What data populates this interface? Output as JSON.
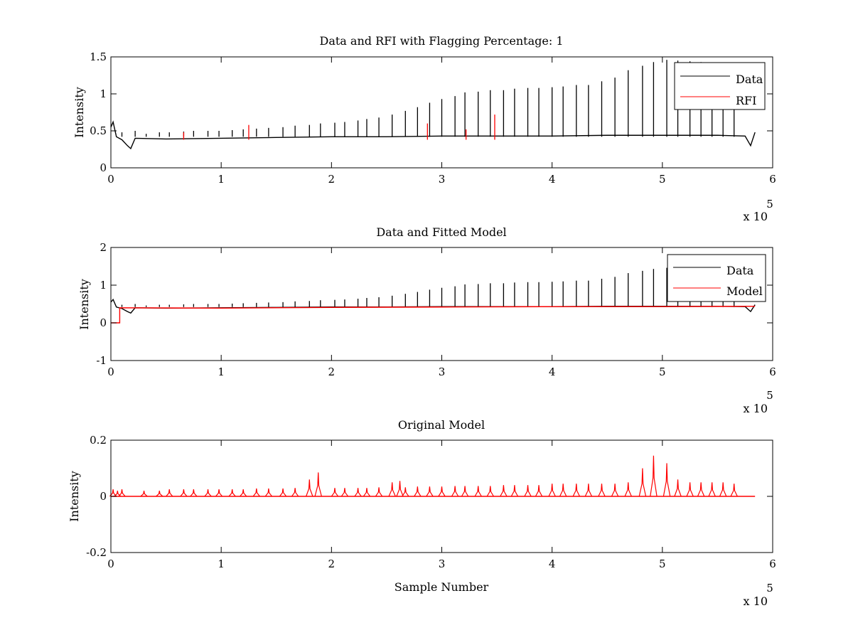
{
  "figure": {
    "background": "#ffffff"
  },
  "colors": {
    "data": "#000000",
    "red": "#ff0000",
    "axes": "#000000"
  },
  "chart_data": [
    {
      "id": "p1",
      "type": "line",
      "title": "Data and RFI with Flagging Percentage: 1",
      "xlabel": "",
      "ylabel": "Intensity",
      "xlim": [
        0,
        6
      ],
      "ylim": [
        0,
        1.5
      ],
      "xticks": [
        0,
        1,
        2,
        3,
        4,
        5,
        6
      ],
      "yticks": [
        0,
        0.5,
        1,
        1.5
      ],
      "xtick_labels": [
        "0",
        "1",
        "2",
        "3",
        "4",
        "5",
        "6"
      ],
      "ytick_labels": [
        "0",
        "0.5",
        "1",
        "1.5"
      ],
      "x_multiplier": {
        "base": "x 10",
        "exponent": "5"
      },
      "legend_position": "top-right",
      "legend": [
        {
          "label": "Data",
          "color": "#000000"
        },
        {
          "label": "RFI",
          "color": "#ff0000"
        }
      ],
      "baseline": {
        "x": [
          0,
          0.02,
          0.05,
          0.1,
          0.15,
          0.18,
          0.22,
          0.5,
          1.0,
          1.5,
          2.0,
          2.5,
          3.0,
          3.5,
          4.0,
          4.5,
          5.0,
          5.5,
          5.75,
          5.8,
          5.84
        ],
        "y": [
          0.55,
          0.62,
          0.42,
          0.38,
          0.3,
          0.26,
          0.4,
          0.39,
          0.4,
          0.41,
          0.42,
          0.42,
          0.43,
          0.43,
          0.43,
          0.44,
          0.44,
          0.44,
          0.43,
          0.3,
          0.48
        ]
      },
      "spikes": {
        "x": [
          0.1,
          0.22,
          0.32,
          0.44,
          0.53,
          0.66,
          0.75,
          0.88,
          0.98,
          1.1,
          1.2,
          1.32,
          1.43,
          1.56,
          1.67,
          1.8,
          1.9,
          2.03,
          2.12,
          2.24,
          2.32,
          2.43,
          2.55,
          2.67,
          2.78,
          2.89,
          3.0,
          3.12,
          3.21,
          3.33,
          3.44,
          3.56,
          3.66,
          3.78,
          3.88,
          4.0,
          4.1,
          4.22,
          4.33,
          4.45,
          4.57,
          4.69,
          4.82,
          4.92,
          5.04,
          5.14,
          5.25,
          5.35,
          5.45,
          5.55,
          5.65
        ],
        "y": [
          0.48,
          0.5,
          0.46,
          0.48,
          0.48,
          0.49,
          0.5,
          0.5,
          0.5,
          0.51,
          0.52,
          0.53,
          0.54,
          0.55,
          0.57,
          0.58,
          0.6,
          0.61,
          0.62,
          0.64,
          0.66,
          0.68,
          0.72,
          0.77,
          0.82,
          0.88,
          0.93,
          0.97,
          1.02,
          1.03,
          1.05,
          1.05,
          1.07,
          1.08,
          1.08,
          1.09,
          1.1,
          1.12,
          1.12,
          1.17,
          1.22,
          1.32,
          1.38,
          1.43,
          1.46,
          1.45,
          1.44,
          1.43,
          1.42,
          1.42,
          1.42
        ]
      },
      "rfi": {
        "x": [
          0.66,
          1.25,
          2.87,
          3.22,
          3.48
        ],
        "y": [
          0.48,
          0.58,
          0.6,
          0.52,
          0.72
        ]
      }
    },
    {
      "id": "p2",
      "type": "line",
      "title": "Data and Fitted Model",
      "xlabel": "",
      "ylabel": "Intensity",
      "xlim": [
        0,
        6
      ],
      "ylim": [
        -1,
        2
      ],
      "xticks": [
        0,
        1,
        2,
        3,
        4,
        5,
        6
      ],
      "yticks": [
        -1,
        0,
        1,
        2
      ],
      "xtick_labels": [
        "0",
        "1",
        "2",
        "3",
        "4",
        "5",
        "6"
      ],
      "ytick_labels": [
        "-1",
        "0",
        "1",
        "2"
      ],
      "x_multiplier": {
        "base": "x 10",
        "exponent": "5"
      },
      "legend_position": "top-right",
      "legend": [
        {
          "label": "Data",
          "color": "#000000"
        },
        {
          "label": "Model",
          "color": "#ff0000"
        }
      ],
      "baseline": {
        "x": [
          0,
          0.02,
          0.05,
          0.1,
          0.15,
          0.18,
          0.22,
          0.5,
          1.0,
          1.5,
          2.0,
          2.5,
          3.0,
          3.5,
          4.0,
          4.5,
          5.0,
          5.5,
          5.75,
          5.8,
          5.84
        ],
        "y": [
          0.55,
          0.62,
          0.42,
          0.38,
          0.3,
          0.26,
          0.4,
          0.39,
          0.4,
          0.41,
          0.42,
          0.42,
          0.43,
          0.43,
          0.43,
          0.44,
          0.44,
          0.44,
          0.43,
          0.3,
          0.48
        ]
      },
      "spikes": {
        "x": [
          0.1,
          0.22,
          0.32,
          0.44,
          0.53,
          0.66,
          0.75,
          0.88,
          0.98,
          1.1,
          1.2,
          1.32,
          1.43,
          1.56,
          1.67,
          1.8,
          1.9,
          2.03,
          2.12,
          2.24,
          2.32,
          2.43,
          2.55,
          2.67,
          2.78,
          2.89,
          3.0,
          3.12,
          3.21,
          3.33,
          3.44,
          3.56,
          3.66,
          3.78,
          3.88,
          4.0,
          4.1,
          4.22,
          4.33,
          4.45,
          4.57,
          4.69,
          4.82,
          4.92,
          5.04,
          5.14,
          5.25,
          5.35,
          5.45,
          5.55,
          5.65
        ],
        "y": [
          0.48,
          0.5,
          0.46,
          0.48,
          0.48,
          0.49,
          0.5,
          0.5,
          0.5,
          0.51,
          0.52,
          0.53,
          0.54,
          0.55,
          0.57,
          0.58,
          0.6,
          0.61,
          0.62,
          0.64,
          0.66,
          0.68,
          0.72,
          0.77,
          0.82,
          0.88,
          0.93,
          0.97,
          1.02,
          1.03,
          1.05,
          1.05,
          1.07,
          1.08,
          1.08,
          1.09,
          1.1,
          1.12,
          1.12,
          1.17,
          1.22,
          1.32,
          1.38,
          1.43,
          1.46,
          1.45,
          1.44,
          1.43,
          1.42,
          1.42,
          1.42
        ]
      },
      "model": {
        "x": [
          0,
          0.08,
          0.08,
          1.0,
          2.0,
          3.0,
          4.0,
          5.0,
          5.84
        ],
        "y": [
          0,
          0,
          0.4,
          0.39,
          0.41,
          0.42,
          0.43,
          0.43,
          0.44
        ]
      }
    },
    {
      "id": "p3",
      "type": "line",
      "title": "Original Model",
      "xlabel": "Sample Number",
      "ylabel": "Intensity",
      "xlim": [
        0,
        6
      ],
      "ylim": [
        -0.2,
        0.2
      ],
      "xticks": [
        0,
        1,
        2,
        3,
        4,
        5,
        6
      ],
      "yticks": [
        -0.2,
        0,
        0.2
      ],
      "xtick_labels": [
        "0",
        "1",
        "2",
        "3",
        "4",
        "5",
        "6"
      ],
      "ytick_labels": [
        "-0.2",
        "0",
        "0.2"
      ],
      "x_multiplier": {
        "base": "x 10",
        "exponent": "5"
      },
      "legend_position": "none",
      "legend": [],
      "spikes": {
        "x": [
          0.02,
          0.06,
          0.1,
          0.3,
          0.44,
          0.53,
          0.66,
          0.75,
          0.88,
          0.98,
          1.1,
          1.2,
          1.32,
          1.43,
          1.56,
          1.67,
          1.8,
          1.88,
          2.03,
          2.12,
          2.24,
          2.32,
          2.43,
          2.55,
          2.62,
          2.67,
          2.78,
          2.89,
          3.0,
          3.12,
          3.21,
          3.33,
          3.44,
          3.56,
          3.66,
          3.78,
          3.88,
          4.0,
          4.1,
          4.22,
          4.33,
          4.45,
          4.57,
          4.69,
          4.82,
          4.92,
          5.04,
          5.14,
          5.25,
          5.35,
          5.45,
          5.55,
          5.65
        ],
        "y": [
          0.025,
          0.02,
          0.025,
          0.02,
          0.02,
          0.025,
          0.025,
          0.025,
          0.025,
          0.025,
          0.025,
          0.025,
          0.028,
          0.028,
          0.028,
          0.03,
          0.06,
          0.085,
          0.03,
          0.03,
          0.03,
          0.03,
          0.032,
          0.05,
          0.055,
          0.032,
          0.035,
          0.035,
          0.035,
          0.037,
          0.037,
          0.037,
          0.037,
          0.04,
          0.04,
          0.04,
          0.04,
          0.045,
          0.045,
          0.045,
          0.045,
          0.045,
          0.045,
          0.05,
          0.1,
          0.145,
          0.118,
          0.06,
          0.05,
          0.05,
          0.05,
          0.05,
          0.045
        ]
      }
    }
  ]
}
